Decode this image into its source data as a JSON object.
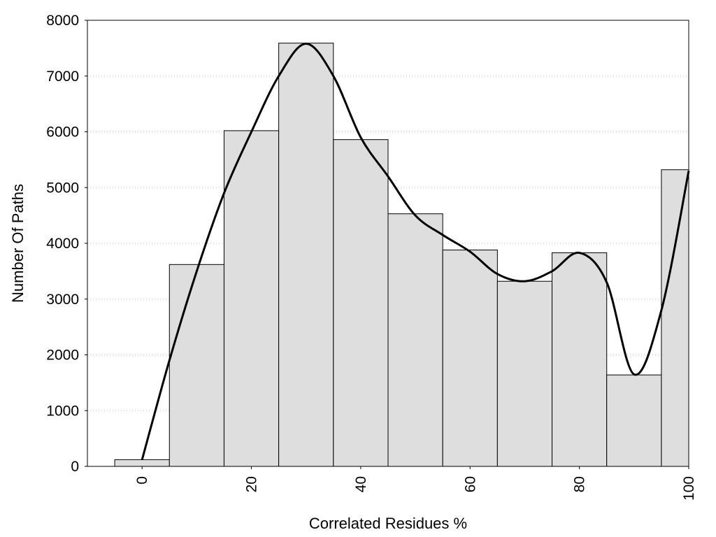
{
  "chart_data": {
    "type": "bar",
    "xlabel": "Correlated Residues %",
    "ylabel": "Number Of Paths",
    "xlim": [
      -10,
      100
    ],
    "ylim": [
      0,
      8000
    ],
    "xticks": [
      "0",
      "20",
      "40",
      "60",
      "80",
      "100"
    ],
    "yticks": [
      "0",
      "1000",
      "2000",
      "3000",
      "4000",
      "5000",
      "6000",
      "7000",
      "8000"
    ],
    "grid": "horizontal-dotted",
    "legend": "none",
    "bin_width": 10,
    "bar_centers": [
      0,
      10,
      20,
      30,
      40,
      50,
      60,
      70,
      80,
      90,
      100
    ],
    "values": [
      120,
      3620,
      6020,
      7590,
      5860,
      4530,
      3880,
      3320,
      3830,
      1640,
      5320
    ],
    "curve": {
      "x": [
        0,
        5,
        10,
        15,
        20,
        25,
        30,
        35,
        40,
        45,
        50,
        55,
        60,
        65,
        70,
        75,
        80,
        85,
        90,
        95,
        100
      ],
      "y": [
        120,
        1900,
        3500,
        4900,
        6000,
        7000,
        7580,
        7000,
        5900,
        5200,
        4500,
        4150,
        3850,
        3450,
        3320,
        3500,
        3830,
        3300,
        1650,
        2800,
        5300
      ]
    },
    "colors": {
      "bar_fill": "#dedede",
      "bar_stroke": "#000000",
      "curve": "#000000",
      "grid": "#c8c8c8"
    }
  }
}
